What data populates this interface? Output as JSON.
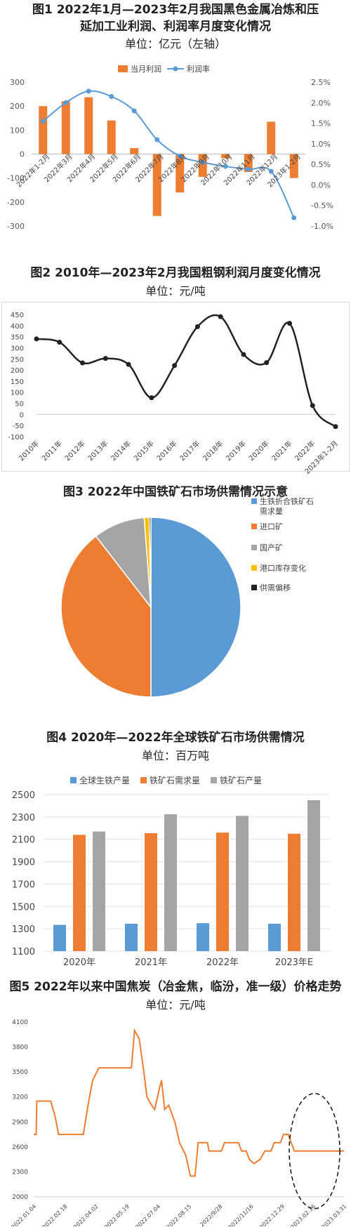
{
  "chart_data": [
    {
      "type": "bar",
      "title": "图1 2022年1月—2023年2月我国黑色金属冶炼和压延加工业利润、利润率月度变化情况",
      "title_lines": [
        "图1 2022年1月—2023年2月我国黑色金属冶炼和压",
        "延加工业利润、利润率月度变化情况"
      ],
      "unit": "单位：亿元（左轴）",
      "categories": [
        "2022年1-2月",
        "2022年3月",
        "2022年4月",
        "2022年5月",
        "2022年6月",
        "2022年7月",
        "2022年8月",
        "2022年9月",
        "2022年10月",
        "2022年11月",
        "2022年12月",
        "2023年1-2月"
      ],
      "series": [
        {
          "name": "当月利润",
          "kind": "bar",
          "axis": "left",
          "color": "#ed7d31",
          "values": [
            200,
            220,
            237,
            140,
            25,
            -258,
            -160,
            -95,
            -18,
            -75,
            135,
            -100
          ]
        },
        {
          "name": "利润率",
          "kind": "line",
          "axis": "right",
          "color": "#5b9bd5",
          "values": [
            1.55,
            2.0,
            2.28,
            2.15,
            1.8,
            1.1,
            0.7,
            0.55,
            0.45,
            0.38,
            0.33,
            -0.8
          ]
        }
      ],
      "ylim": [
        -300,
        300
      ],
      "yticks": [
        "300",
        "200",
        "100",
        "0",
        "-100",
        "-200",
        "-300"
      ],
      "y2lim": [
        -1.0,
        2.5
      ],
      "y2ticks": [
        "2.5%",
        "2.0%",
        "1.5%",
        "1.0%",
        "0.5%",
        "0.0%",
        "-0.5%",
        "-1.0%"
      ],
      "legend": "top-center"
    },
    {
      "type": "line",
      "title": "图2 2010年—2023年2月我国粗钢利润月度变化情况",
      "unit": "单位：元/吨",
      "categories": [
        "2010年",
        "2011年",
        "2012年",
        "2013年",
        "2014年",
        "2015年",
        "2016年",
        "2017年",
        "2018年",
        "2019年",
        "2020年",
        "2021年",
        "2022年",
        "2023年1-2月"
      ],
      "values": [
        340,
        325,
        232,
        252,
        225,
        75,
        220,
        395,
        440,
        270,
        233,
        410,
        40,
        -55
      ],
      "ylim": [
        -100,
        450
      ],
      "yticks": [
        "450",
        "400",
        "350",
        "300",
        "250",
        "200",
        "150",
        "100",
        "50",
        "0",
        "-50",
        "-100"
      ],
      "color": "#222222"
    },
    {
      "type": "pie",
      "title": "图3  2022年中国铁矿石市场供需情况示意",
      "labels": [
        "生铁折合铁矿石需求量",
        "进口矿",
        "国产矿",
        "港口库存变化",
        "供需偏移"
      ],
      "values": [
        50,
        39.5,
        9.3,
        0.9,
        0.3
      ],
      "colors": [
        "#5b9bd5",
        "#ed7d31",
        "#a5a5a5",
        "#ffc000",
        "#222222"
      ],
      "legend": "right"
    },
    {
      "type": "bar",
      "title": "图4 2020年—2022年全球铁矿石市场供需情况",
      "unit": "单位：百万吨",
      "categories": [
        "2020年",
        "2021年",
        "2022年",
        "2023年E"
      ],
      "series": [
        {
          "name": "全球生铁产量",
          "color": "#5b9bd5",
          "values": [
            1335,
            1345,
            1350,
            1345
          ]
        },
        {
          "name": "铁矿石需求量",
          "color": "#ed7d31",
          "values": [
            2140,
            2155,
            2160,
            2150
          ]
        },
        {
          "name": "铁矿石产量",
          "color": "#a5a5a5",
          "values": [
            2170,
            2325,
            2310,
            2450
          ]
        }
      ],
      "ylim": [
        1100,
        2500
      ],
      "yticks": [
        "2500",
        "2300",
        "2100",
        "1900",
        "1700",
        "1500",
        "1300",
        "1100"
      ],
      "legend": "top"
    },
    {
      "type": "line",
      "title": "图5 2022年以来中国焦炭（冶金焦，临汾，准一级）价格走势",
      "unit": "单位：元/吨",
      "x": [
        "2022.01.04",
        "2022.02.18",
        "2022.04.02",
        "2022.05.19",
        "2022.07.04",
        "2022.08.15",
        "2022/9/28",
        "2022/11/16",
        "2022.12.29",
        "2023.02.16",
        "2023.03.31"
      ],
      "ylim": [
        2000,
        4100
      ],
      "yticks": [
        "4100",
        "3800",
        "3500",
        "3200",
        "2900",
        "2600",
        "2300",
        "2000"
      ],
      "steps": [
        [
          0,
          2750
        ],
        [
          0.08,
          2750
        ],
        [
          0.1,
          3150
        ],
        [
          0.55,
          3150
        ],
        [
          0.7,
          2950
        ],
        [
          0.8,
          2750
        ],
        [
          1.6,
          2750
        ],
        [
          1.75,
          3100
        ],
        [
          1.9,
          3400
        ],
        [
          2.1,
          3550
        ],
        [
          2.45,
          3550
        ],
        [
          3.15,
          3550
        ],
        [
          3.25,
          4000
        ],
        [
          3.4,
          3900
        ],
        [
          3.55,
          3500
        ],
        [
          3.65,
          3200
        ],
        [
          3.8,
          3100
        ],
        [
          3.9,
          3050
        ],
        [
          4.05,
          3300
        ],
        [
          4.12,
          3400
        ],
        [
          4.22,
          3050
        ],
        [
          4.35,
          3100
        ],
        [
          4.45,
          3000
        ],
        [
          4.55,
          2900
        ],
        [
          4.7,
          2650
        ],
        [
          4.9,
          2500
        ],
        [
          5.05,
          2250
        ],
        [
          5.2,
          2250
        ],
        [
          5.3,
          2650
        ],
        [
          5.6,
          2650
        ],
        [
          5.65,
          2550
        ],
        [
          6.05,
          2550
        ],
        [
          6.15,
          2650
        ],
        [
          6.6,
          2650
        ],
        [
          6.7,
          2550
        ],
        [
          6.85,
          2550
        ],
        [
          6.95,
          2450
        ],
        [
          7.1,
          2400
        ],
        [
          7.3,
          2450
        ],
        [
          7.45,
          2550
        ],
        [
          7.65,
          2550
        ],
        [
          7.75,
          2650
        ],
        [
          7.95,
          2650
        ],
        [
          8.05,
          2750
        ],
        [
          8.2,
          2750
        ],
        [
          8.3,
          2650
        ],
        [
          8.4,
          2550
        ],
        [
          10,
          2550
        ]
      ],
      "color": "#ed7d31",
      "annotation": "dashed-ellipse-around-latest-values"
    }
  ]
}
